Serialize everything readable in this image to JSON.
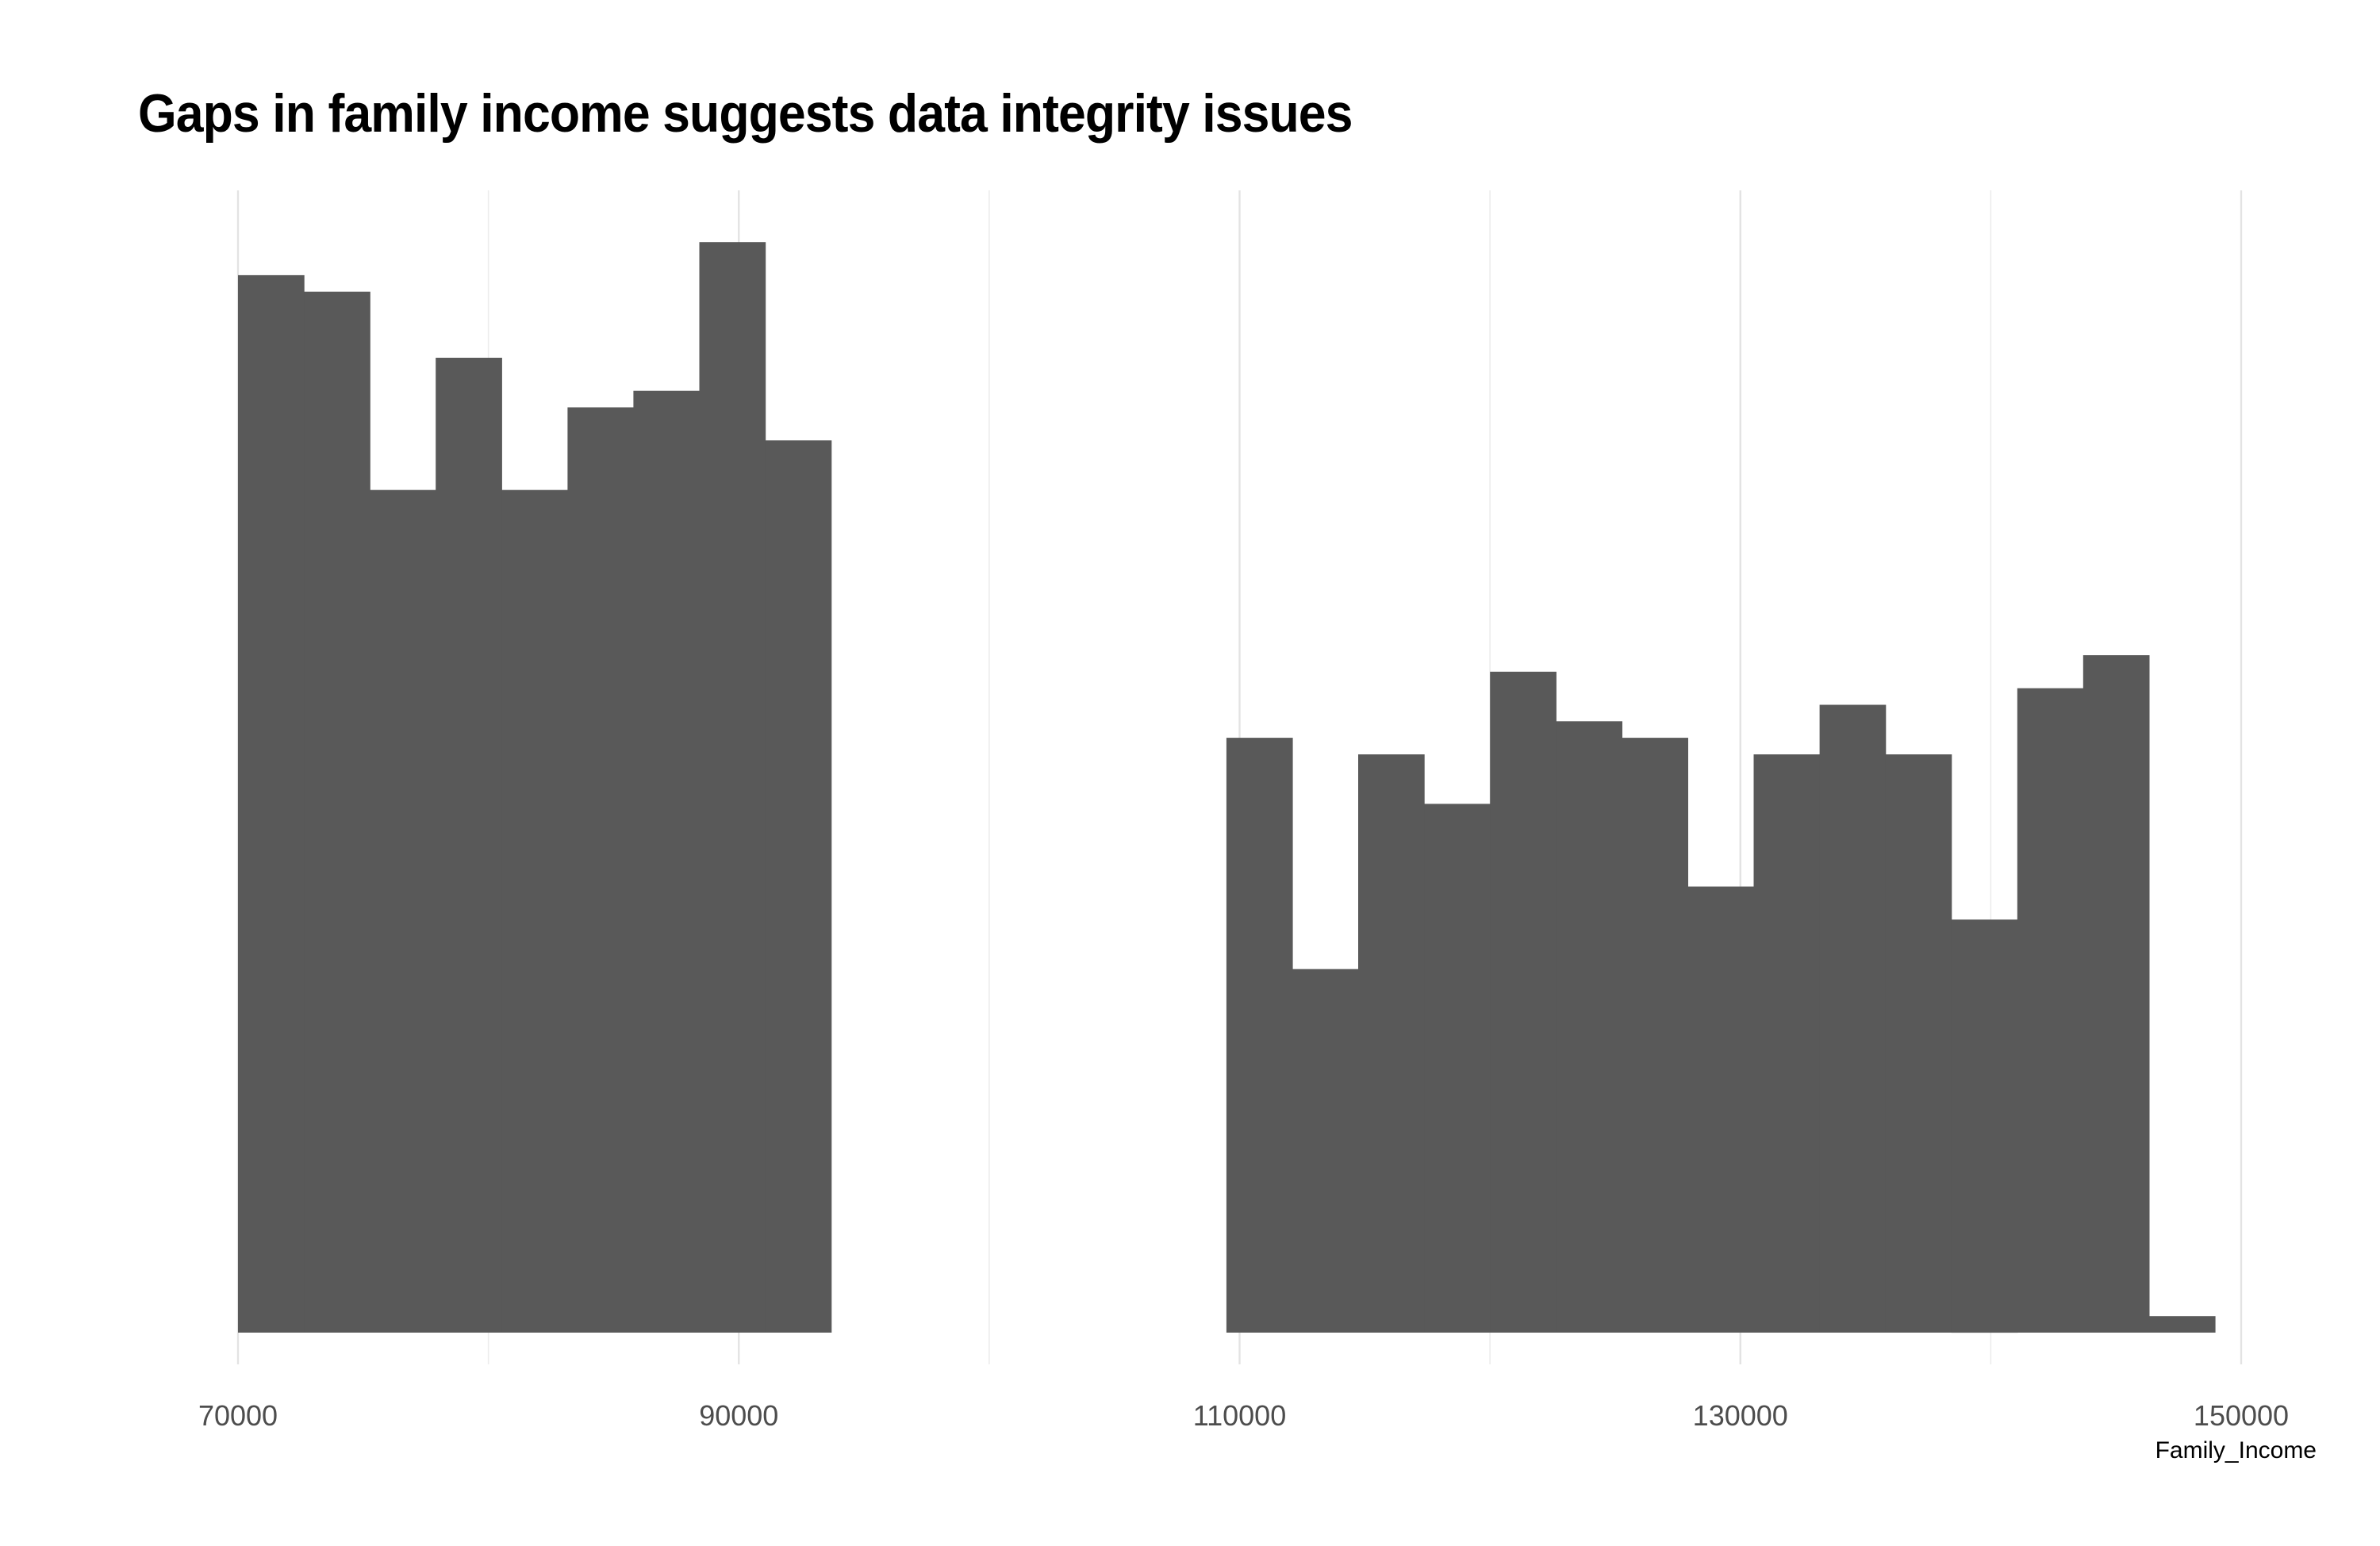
{
  "chart_data": {
    "type": "bar",
    "title": "Gaps in family income suggests data integrity issues",
    "xlabel": "Family_Income",
    "ylabel": "",
    "xlim": [
      70000,
      150000
    ],
    "x_ticks": [
      70000,
      90000,
      110000,
      130000,
      150000
    ],
    "x_tick_labels": [
      "70000",
      "90000",
      "110000",
      "130000",
      "150000"
    ],
    "minor_gridlines_x": [
      80000,
      100000,
      120000,
      140000
    ],
    "y_axis_visible": false,
    "grid": "vertical only",
    "bar_color": "#595959",
    "bins": [
      {
        "start": 70000,
        "end": 72632,
        "count": 64
      },
      {
        "start": 72632,
        "end": 75264,
        "count": 63
      },
      {
        "start": 75264,
        "end": 77896,
        "count": 51
      },
      {
        "start": 77896,
        "end": 80528,
        "count": 59
      },
      {
        "start": 80528,
        "end": 83160,
        "count": 51
      },
      {
        "start": 83160,
        "end": 85792,
        "count": 56
      },
      {
        "start": 85792,
        "end": 88424,
        "count": 57
      },
      {
        "start": 88424,
        "end": 91056,
        "count": 66
      },
      {
        "start": 91056,
        "end": 93688,
        "count": 54
      },
      {
        "start": 109474,
        "end": 112106,
        "count": 36
      },
      {
        "start": 112106,
        "end": 114738,
        "count": 22
      },
      {
        "start": 114738,
        "end": 117370,
        "count": 35
      },
      {
        "start": 117370,
        "end": 120002,
        "count": 32
      },
      {
        "start": 120002,
        "end": 122634,
        "count": 40
      },
      {
        "start": 122634,
        "end": 125266,
        "count": 37
      },
      {
        "start": 125266,
        "end": 127898,
        "count": 36
      },
      {
        "start": 127898,
        "end": 130530,
        "count": 27
      },
      {
        "start": 130530,
        "end": 133162,
        "count": 35
      },
      {
        "start": 133162,
        "end": 135794,
        "count": 38
      },
      {
        "start": 135794,
        "end": 138426,
        "count": 35
      },
      {
        "start": 138426,
        "end": 141058,
        "count": 25
      },
      {
        "start": 141058,
        "end": 143690,
        "count": 39
      },
      {
        "start": 143690,
        "end": 146322,
        "count": 41
      },
      {
        "start": 146322,
        "end": 148954,
        "count": 1
      }
    ]
  }
}
